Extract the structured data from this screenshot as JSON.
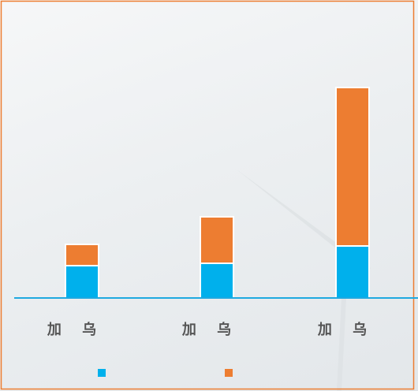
{
  "chart_data": {
    "type": "stacked-bar",
    "categories": [
      "加 乌",
      "加 乌",
      "加 乌"
    ],
    "series": [
      {
        "color": "#00b0ec",
        "values": [
          41,
          44,
          66
        ]
      },
      {
        "color": "#ed7d31",
        "values": [
          27,
          59,
          201
        ]
      }
    ]
  }
}
